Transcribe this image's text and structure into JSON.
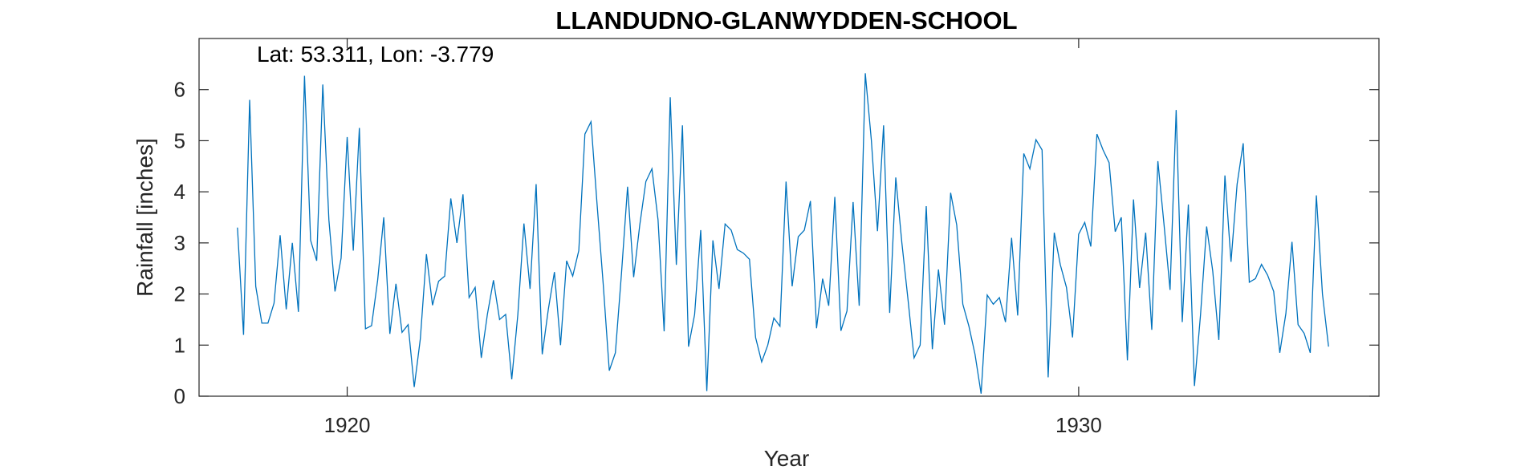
{
  "chart_data": {
    "type": "line",
    "title": "LLANDUDNO-GLANWYDDEN-SCHOOL",
    "annotation": "Lat: 53.311, Lon: -3.779",
    "xlabel": "Year",
    "ylabel": "Rainfall [inches]",
    "xlim": [
      1917.975,
      1934.105
    ],
    "ylim": [
      0,
      7
    ],
    "xticks": [
      1920,
      1930
    ],
    "xtick_labels": [
      "1920",
      "1930"
    ],
    "yticks": [
      0,
      1,
      2,
      3,
      4,
      5,
      6
    ],
    "ytick_labels": [
      "0",
      "1",
      "2",
      "3",
      "4",
      "5",
      "6"
    ],
    "grid": false,
    "line_color": "#0072bd",
    "series": [
      {
        "x_start": 1918.5,
        "x_step": 0.08333,
        "values": [
          3.3,
          1.2,
          5.8,
          2.15,
          1.43,
          1.43,
          1.82,
          3.15,
          1.7,
          3.0,
          1.65,
          6.27,
          3.05,
          2.65,
          6.1,
          3.45,
          2.05,
          2.7,
          5.07,
          2.85,
          5.25,
          1.32,
          1.38,
          2.27,
          3.5,
          1.22,
          2.2,
          1.25,
          1.4,
          0.18,
          1.12,
          2.78,
          1.78,
          2.25,
          2.35,
          3.87,
          3.0,
          3.95,
          1.93,
          2.13,
          0.75,
          1.6,
          2.27,
          1.5,
          1.6,
          0.33,
          1.6,
          3.38,
          2.1,
          4.15,
          0.82,
          1.7,
          2.43,
          1.0,
          2.65,
          2.35,
          2.85,
          5.13,
          5.37,
          3.75,
          2.2,
          0.5,
          0.85,
          2.4,
          4.1,
          2.33,
          3.35,
          4.2,
          4.45,
          3.45,
          1.27,
          5.85,
          2.57,
          5.3,
          0.97,
          1.6,
          3.25,
          0.1,
          3.05,
          2.1,
          3.37,
          3.25,
          2.87,
          2.8,
          2.68,
          1.15,
          0.67,
          1.0,
          1.53,
          1.37,
          4.2,
          2.15,
          3.12,
          3.25,
          3.82,
          1.33,
          2.3,
          1.77,
          3.9,
          1.28,
          1.67,
          3.8,
          1.77,
          6.32,
          5.0,
          3.23,
          5.3,
          1.63,
          4.28,
          3.0,
          1.9,
          0.75,
          1.0,
          3.72,
          0.92,
          2.48,
          1.4,
          3.98,
          3.35,
          1.8,
          1.37,
          0.82,
          0.05,
          1.98,
          1.8,
          1.93,
          1.45,
          3.1,
          1.58,
          4.75,
          4.45,
          5.02,
          4.82,
          0.37,
          3.2,
          2.57,
          2.13,
          1.15,
          3.17,
          3.4,
          2.93,
          5.13,
          4.82,
          4.57,
          3.22,
          3.5,
          0.7,
          3.85,
          2.12,
          3.2,
          1.3,
          4.6,
          3.37,
          2.08,
          5.6,
          1.45,
          3.75,
          0.2,
          1.6,
          3.32,
          2.45,
          1.1,
          4.32,
          2.63,
          4.15,
          4.95,
          2.23,
          2.3,
          2.58,
          2.37,
          2.05,
          0.85,
          1.62,
          3.02,
          1.4,
          1.23,
          0.85,
          3.93,
          2.0,
          0.97
        ]
      }
    ]
  }
}
